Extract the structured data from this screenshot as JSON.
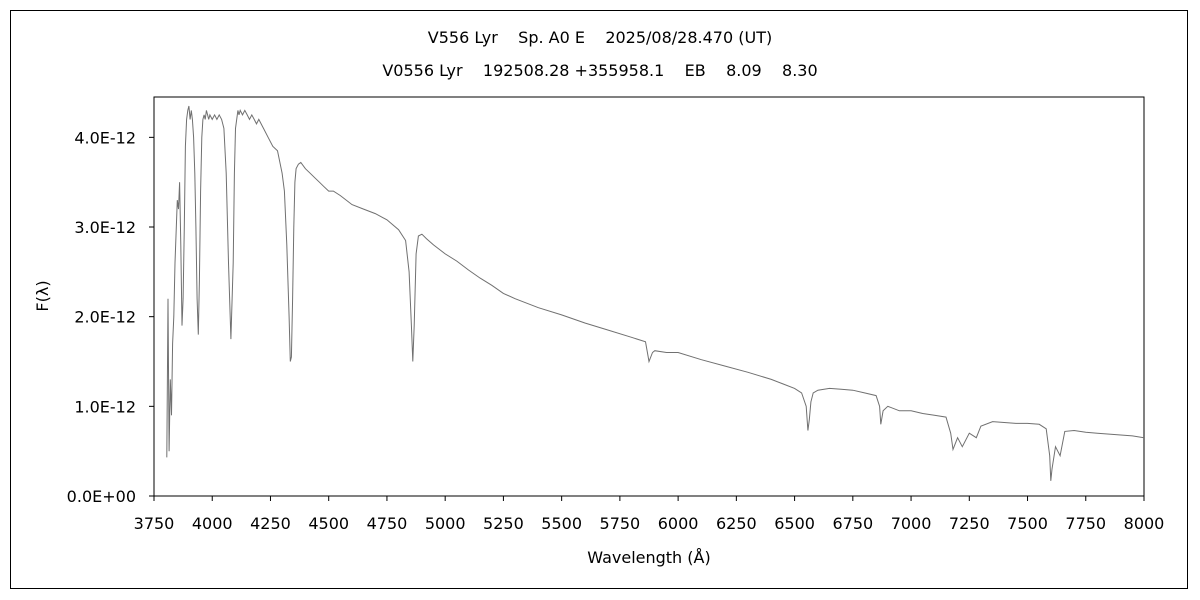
{
  "chart_data": {
    "type": "line",
    "title": "V556 Lyr    Sp. A0 E    2025/08/28.470 (UT)",
    "subtitle": "V0556 Lyr    192508.28 +355958.1    EB    8.09    8.30",
    "xlabel": "Wavelength (Å)",
    "ylabel": "F(λ)",
    "xlim": [
      3750,
      8000
    ],
    "ylim": [
      0,
      4.45e-12
    ],
    "x_ticks": [
      3750,
      4000,
      4250,
      4500,
      4750,
      5000,
      5250,
      5500,
      5750,
      6000,
      6250,
      6500,
      6750,
      7000,
      7250,
      7500,
      7750,
      8000
    ],
    "x_tick_labels": [
      "3750",
      "4000",
      "4250",
      "4500",
      "4750",
      "5000",
      "5250",
      "5500",
      "5750",
      "6000",
      "6250",
      "6500",
      "6750",
      "7000",
      "7250",
      "7500",
      "7750",
      "8000"
    ],
    "y_ticks": [
      0,
      1e-12,
      2e-12,
      3e-12,
      4e-12
    ],
    "y_tick_labels": [
      "0.0E+00",
      "1.0E-12",
      "2.0E-12",
      "3.0E-12",
      "4.0E-12"
    ],
    "grid": false,
    "line_color": "#707070",
    "series": [
      {
        "name": "",
        "x": [
          3805,
          3810,
          3815,
          3820,
          3825,
          3830,
          3835,
          3840,
          3850,
          3855,
          3860,
          3865,
          3870,
          3875,
          3880,
          3885,
          3890,
          3895,
          3900,
          3905,
          3910,
          3915,
          3920,
          3925,
          3930,
          3935,
          3940,
          3945,
          3950,
          3955,
          3960,
          3965,
          3970,
          3975,
          3980,
          3985,
          3990,
          4000,
          4010,
          4020,
          4030,
          4040,
          4050,
          4060,
          4070,
          4080,
          4090,
          4095,
          4100,
          4105,
          4110,
          4115,
          4120,
          4130,
          4140,
          4150,
          4160,
          4170,
          4180,
          4190,
          4200,
          4220,
          4240,
          4260,
          4280,
          4300,
          4310,
          4320,
          4330,
          4335,
          4340,
          4345,
          4350,
          4355,
          4360,
          4370,
          4380,
          4400,
          4420,
          4440,
          4460,
          4480,
          4500,
          4520,
          4550,
          4600,
          4650,
          4700,
          4750,
          4800,
          4830,
          4845,
          4855,
          4861,
          4867,
          4875,
          4885,
          4900,
          4920,
          4950,
          5000,
          5050,
          5100,
          5150,
          5200,
          5250,
          5300,
          5400,
          5500,
          5600,
          5700,
          5800,
          5860,
          5875,
          5890,
          5900,
          5950,
          6000,
          6100,
          6200,
          6300,
          6400,
          6450,
          6500,
          6530,
          6550,
          6557,
          6563,
          6570,
          6580,
          6600,
          6650,
          6700,
          6750,
          6800,
          6850,
          6865,
          6870,
          6880,
          6900,
          6950,
          7000,
          7050,
          7100,
          7150,
          7170,
          7180,
          7200,
          7220,
          7250,
          7280,
          7300,
          7350,
          7400,
          7450,
          7500,
          7550,
          7580,
          7595,
          7600,
          7605,
          7620,
          7640,
          7660,
          7700,
          7750,
          7800,
          7850,
          7900,
          7950,
          8000
        ],
        "values": [
          4.3e-13,
          2.2e-12,
          5e-13,
          1.3e-12,
          9e-13,
          1.7e-12,
          2e-12,
          2.6e-12,
          3.3e-12,
          3.2e-12,
          3.5e-12,
          2.8e-12,
          1.9e-12,
          2.2e-12,
          3e-12,
          3.9e-12,
          4.2e-12,
          4.3e-12,
          4.35e-12,
          4.2e-12,
          4.3e-12,
          4.2e-12,
          4e-12,
          3.6e-12,
          3e-12,
          2.2e-12,
          1.8e-12,
          2.4e-12,
          3.4e-12,
          4e-12,
          4.2e-12,
          4.25e-12,
          4.2e-12,
          4.3e-12,
          4.25e-12,
          4.2e-12,
          4.25e-12,
          4.2e-12,
          4.25e-12,
          4.2e-12,
          4.25e-12,
          4.2e-12,
          4.1e-12,
          3.6e-12,
          2.6e-12,
          1.75e-12,
          2.6e-12,
          3.6e-12,
          4.1e-12,
          4.2e-12,
          4.3e-12,
          4.25e-12,
          4.3e-12,
          4.25e-12,
          4.3e-12,
          4.25e-12,
          4.2e-12,
          4.25e-12,
          4.2e-12,
          4.15e-12,
          4.2e-12,
          4.1e-12,
          4e-12,
          3.9e-12,
          3.85e-12,
          3.6e-12,
          3.4e-12,
          2.8e-12,
          2e-12,
          1.5e-12,
          1.55e-12,
          2.2e-12,
          3e-12,
          3.5e-12,
          3.65e-12,
          3.7e-12,
          3.72e-12,
          3.65e-12,
          3.6e-12,
          3.55e-12,
          3.5e-12,
          3.45e-12,
          3.4e-12,
          3.4e-12,
          3.35e-12,
          3.25e-12,
          3.2e-12,
          3.15e-12,
          3.08e-12,
          2.97e-12,
          2.85e-12,
          2.5e-12,
          1.9e-12,
          1.5e-12,
          1.9e-12,
          2.7e-12,
          2.9e-12,
          2.92e-12,
          2.87e-12,
          2.8e-12,
          2.7e-12,
          2.62e-12,
          2.52e-12,
          2.43e-12,
          2.35e-12,
          2.26e-12,
          2.2e-12,
          2.1e-12,
          2.02e-12,
          1.93e-12,
          1.85e-12,
          1.77e-12,
          1.72e-12,
          1.5e-12,
          1.6e-12,
          1.62e-12,
          1.6e-12,
          1.6e-12,
          1.52e-12,
          1.45e-12,
          1.38e-12,
          1.3e-12,
          1.25e-12,
          1.2e-12,
          1.15e-12,
          1e-12,
          7.3e-13,
          8.5e-13,
          1.05e-12,
          1.15e-12,
          1.18e-12,
          1.2e-12,
          1.19e-12,
          1.18e-12,
          1.15e-12,
          1.12e-12,
          1e-12,
          8e-13,
          9.5e-13,
          1e-12,
          9.5e-13,
          9.5e-13,
          9.2e-13,
          9e-13,
          8.8e-13,
          7e-13,
          5.2e-13,
          6.5e-13,
          5.5e-13,
          7e-13,
          6.5e-13,
          7.8e-13,
          8.3e-13,
          8.2e-13,
          8.1e-13,
          8.1e-13,
          8e-13,
          7.5e-13,
          4.5e-13,
          1.7e-13,
          3e-13,
          5.5e-13,
          4.5e-13,
          7.2e-13,
          7.3e-13,
          7.1e-13,
          7e-13,
          6.9e-13,
          6.8e-13,
          6.7e-13,
          6.5e-13
        ]
      }
    ]
  }
}
